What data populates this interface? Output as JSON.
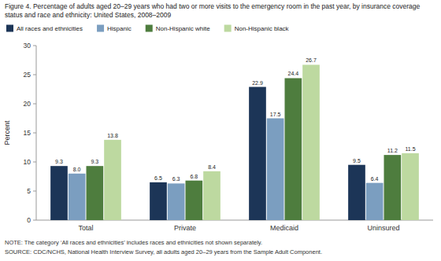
{
  "chart_data": {
    "type": "bar",
    "title": "Figure 4. Percentage of adults aged 20–29 years who had two or more visits to the emergency room in the past year, by insurance coverage status and race and ethnicity: United States, 2008–2009",
    "categories": [
      "Total",
      "Private",
      "Medicaid",
      "Uninsured"
    ],
    "series": [
      {
        "name": "All races and ethnicities",
        "color": "#1c3557",
        "values": [
          9.3,
          6.5,
          22.9,
          9.5
        ],
        "value_labels": [
          "9.3",
          "6.5",
          "22.9",
          "9.5"
        ]
      },
      {
        "name": "Hispanic",
        "color": "#7b9ec0",
        "values": [
          8.0,
          6.3,
          17.5,
          6.4
        ],
        "value_labels": [
          "8.0",
          "6.3",
          "17.5",
          "6.4"
        ]
      },
      {
        "name": "Non-Hispanic white",
        "color": "#4e7d3e",
        "values": [
          9.3,
          6.8,
          24.4,
          11.2
        ],
        "value_labels": [
          "9.3",
          "6.8",
          "24.4",
          "11.2"
        ]
      },
      {
        "name": "Non-Hispanic black",
        "color": "#bdd9a0",
        "values": [
          13.8,
          8.4,
          26.7,
          11.5
        ],
        "value_labels": [
          "13.8",
          "8.4",
          "26.7",
          "11.5"
        ]
      }
    ],
    "y_label": "Percent",
    "ylim": [
      0,
      30
    ],
    "yticks": [
      0,
      5,
      10,
      15,
      20,
      25,
      30
    ],
    "annotations": [
      "NOTE: The category ‘All races and ethnicities’ includes races and ethnicities not shown separately.",
      "SOURCE: CDC/NCHS, National Health Interview Survey, all adults aged 20–29 years from the Sample Adult Component."
    ],
    "data_labels": true,
    "legend": "top",
    "grid": false
  }
}
